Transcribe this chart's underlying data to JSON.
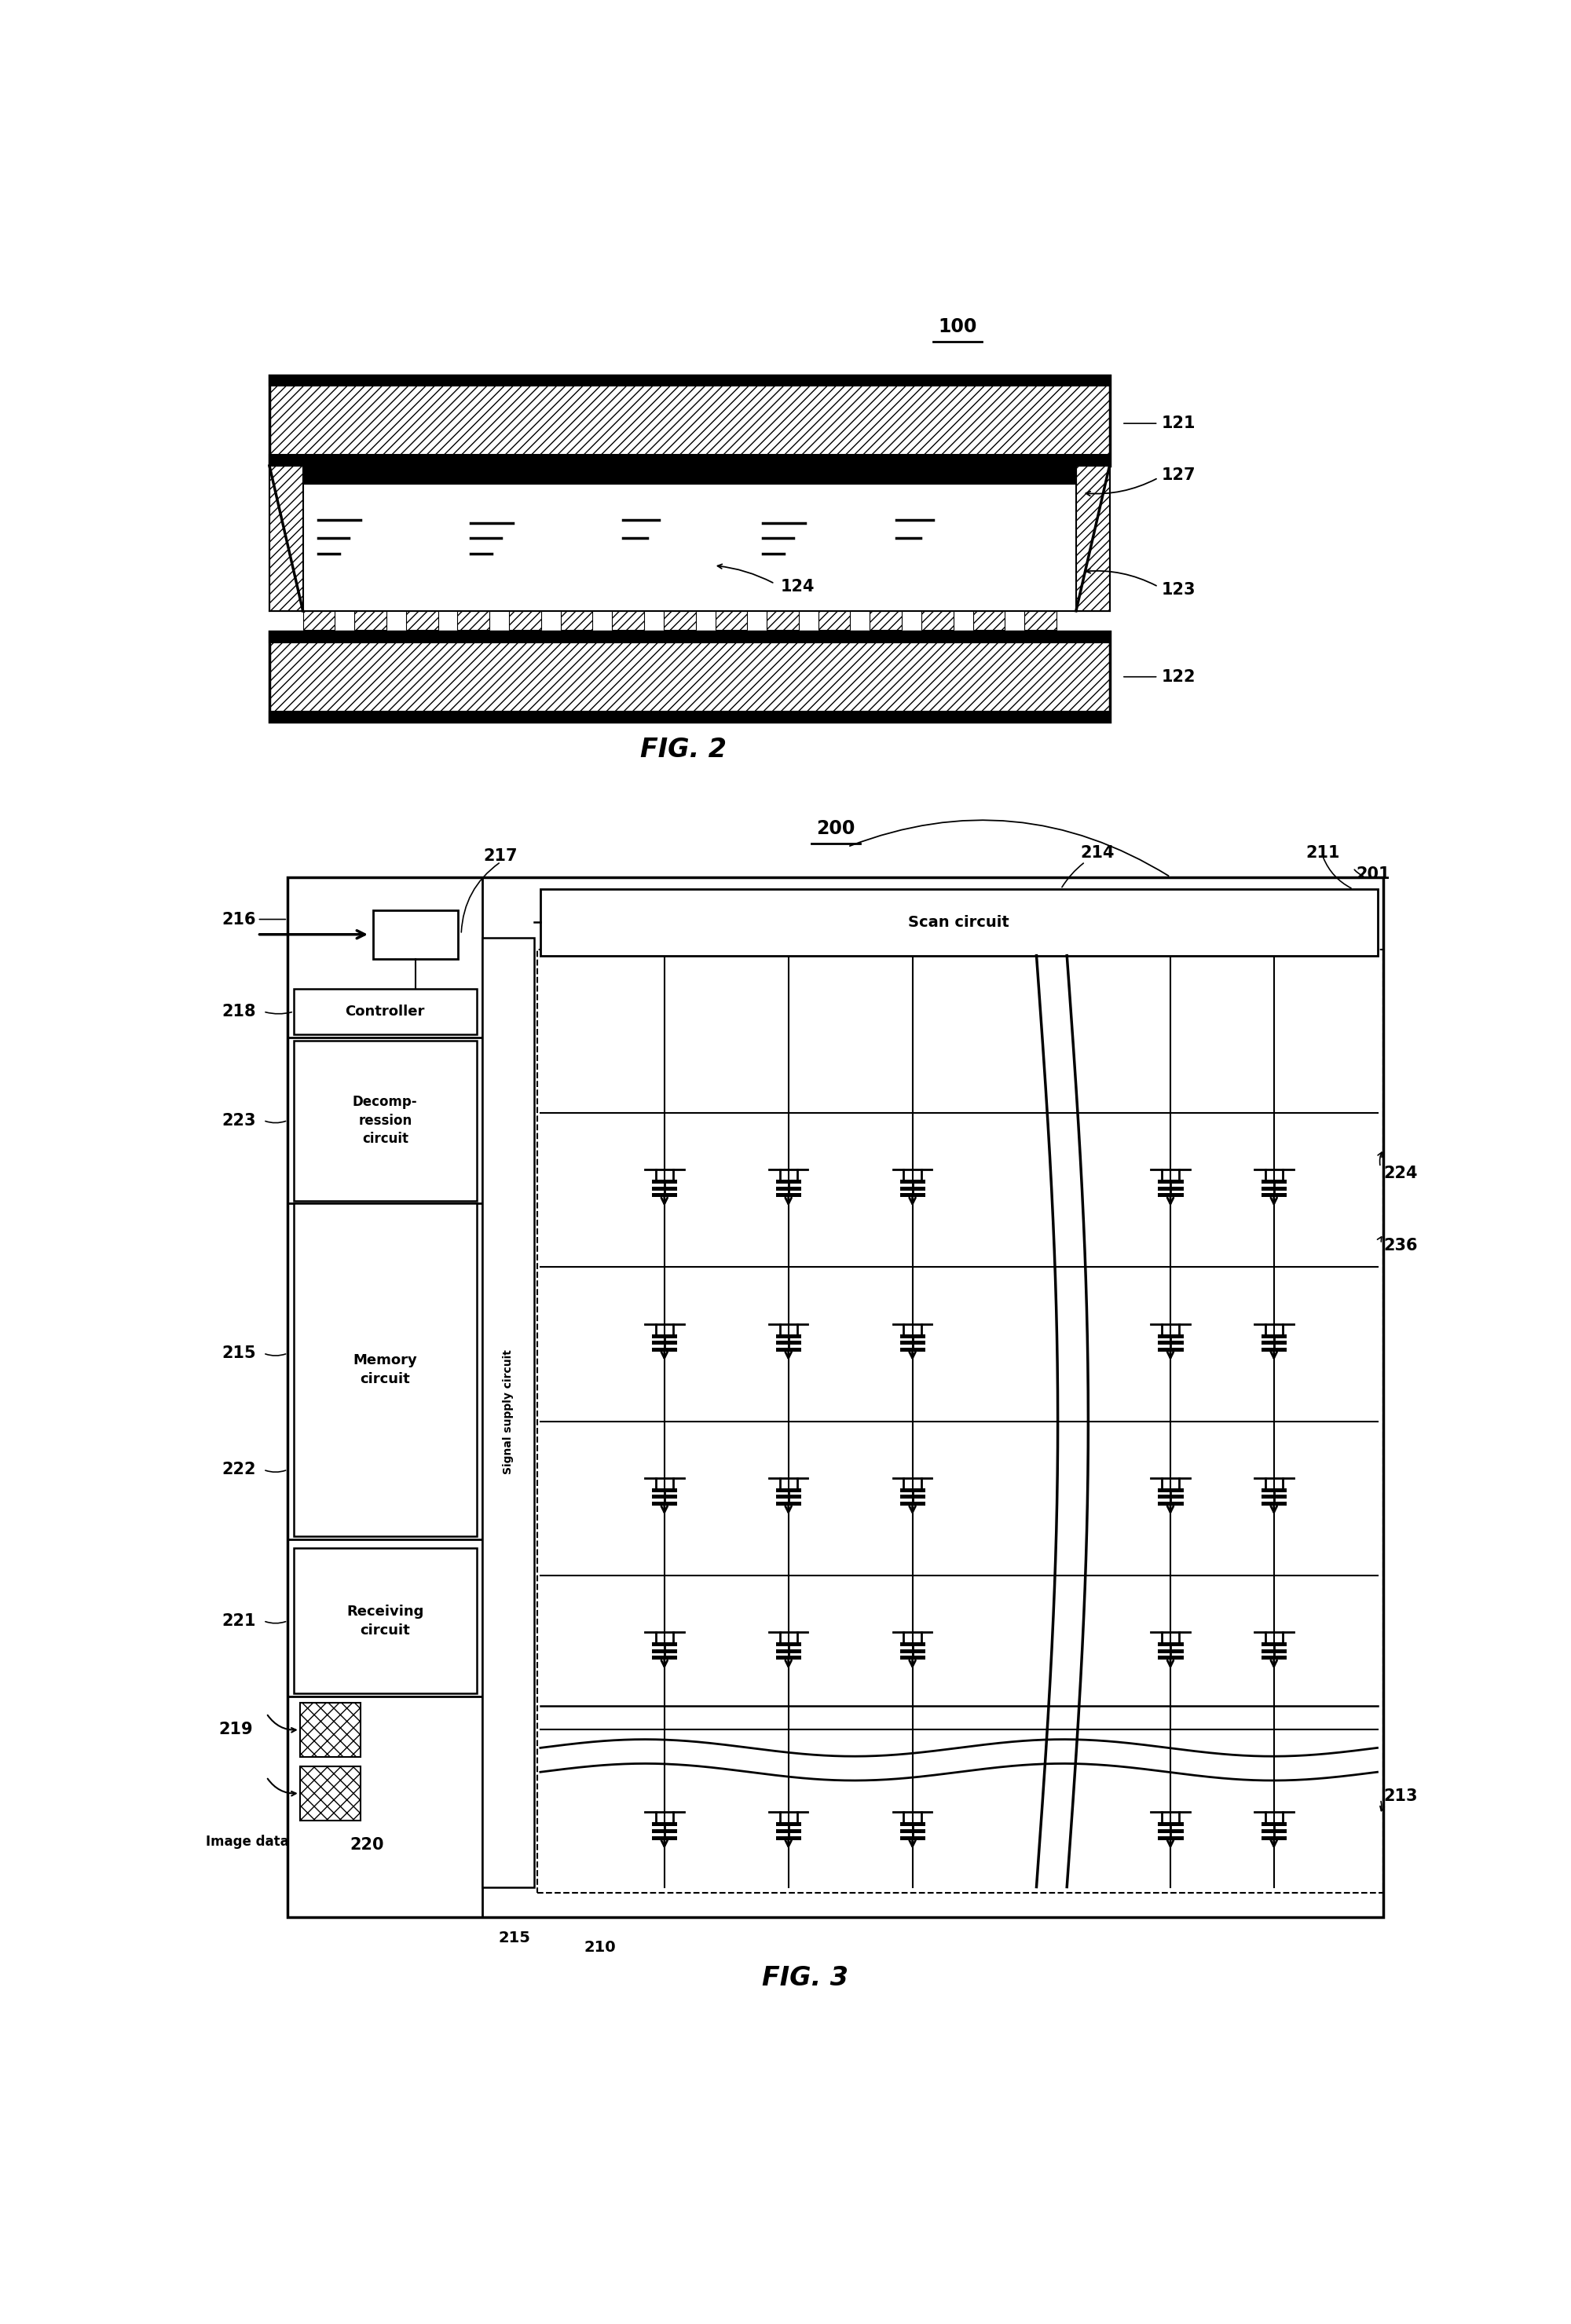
{
  "bg_color": "#ffffff",
  "fig_width": 20.0,
  "fig_height": 29.59,
  "fig2_label": "FIG. 2",
  "fig3_label": "FIG. 3",
  "ref_100": "100",
  "ref_121": "121",
  "ref_122": "122",
  "ref_123": "123",
  "ref_124": "124",
  "ref_127": "127",
  "ref_200": "200",
  "ref_201": "201",
  "ref_210": "210",
  "ref_211": "211",
  "ref_213": "213",
  "ref_214": "214",
  "ref_215": "215",
  "ref_216": "216",
  "ref_217": "217",
  "ref_218": "218",
  "ref_219": "219",
  "ref_220": "220",
  "ref_221": "221",
  "ref_222": "222",
  "ref_223": "223",
  "ref_224": "224",
  "ref_236": "236",
  "label_controller": "Controller",
  "label_decomp1": "Decomp-",
  "label_decomp2": "ression",
  "label_decomp3": "circuit",
  "label_memory1": "Memory",
  "label_memory2": "circuit",
  "label_receiving1": "Receiving",
  "label_receiving2": "circuit",
  "label_scan": "Scan circuit",
  "label_signal": "Signal supply circuit",
  "label_image": "Image data"
}
